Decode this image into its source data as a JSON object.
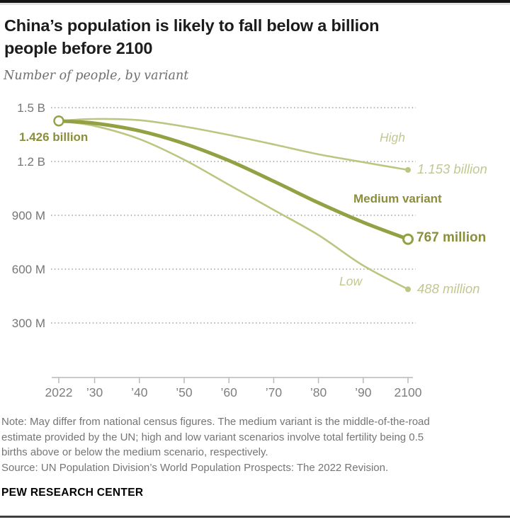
{
  "header": {
    "title_lines": [
      "China’s population is likely to fall below a billion",
      "people before 2100"
    ],
    "subtitle": "Number of people, by variant"
  },
  "chart_data": {
    "type": "line",
    "title": "China’s population is likely to fall below a billion people before 2100",
    "subtitle": "Number of people, by variant",
    "x": [
      2022,
      2030,
      2040,
      2050,
      2060,
      2070,
      2080,
      2090,
      2100
    ],
    "x_tick_labels": [
      "2022",
      "’30",
      "’40",
      "’50",
      "’60",
      "’70",
      "’80",
      "’90",
      "2100"
    ],
    "xlim": [
      2022,
      2100
    ],
    "y_unit": "millions of people",
    "y_ticks": [
      {
        "label": "1.5 B",
        "value": 1500
      },
      {
        "label": "1.2 B",
        "value": 1200
      },
      {
        "label": "900 M",
        "value": 900
      },
      {
        "label": "600 M",
        "value": 600
      },
      {
        "label": "300 M",
        "value": 300
      }
    ],
    "ylim_millions": [
      300,
      1500
    ],
    "grid": "dotted-horizontal",
    "start_point": {
      "year": 2022,
      "value_millions": 1426,
      "label": "1.426 billion"
    },
    "series": [
      {
        "name": "High",
        "role": "light",
        "end_marker": "dot",
        "values": [
          1426,
          1437,
          1430,
          1395,
          1348,
          1295,
          1240,
          1196,
          1153
        ],
        "end_value_millions": 1153,
        "end_label": "1.153 billion"
      },
      {
        "name": "Low",
        "role": "light",
        "end_marker": "dot",
        "values": [
          1426,
          1398,
          1325,
          1210,
          1070,
          930,
          790,
          620,
          488
        ],
        "end_value_millions": 488,
        "end_label": "488 million"
      },
      {
        "name": "Medium variant",
        "role": "emphasis",
        "end_marker": "open",
        "values": [
          1426,
          1413,
          1371,
          1300,
          1205,
          1090,
          970,
          861,
          767
        ],
        "end_value_millions": 767,
        "end_label": "767 million"
      }
    ],
    "legend_position": "inline-labels"
  },
  "annotations": {
    "start_value": "1.426 billion",
    "high_label": "High",
    "high_value": "1.153 billion",
    "medium_label": "Medium variant",
    "medium_value": "767 million",
    "low_label": "Low",
    "low_value": "488 million"
  },
  "footer": {
    "note_lines": [
      "Note: May differ from national census figures. The medium variant is the middle-of-the-road",
      "estimate provided by the UN; high and low variant scenarios involve total fertility being 0.5",
      "births above or below the medium scenario, respectively."
    ],
    "source": "Source: UN Population Division’s World Population Prospects: The 2022 Revision.",
    "brand": "PEW RESEARCH CENTER"
  },
  "colors": {
    "olive_dark": "#93a044",
    "olive_dark_text": "#8b8e3b",
    "olive_light": "#bdc580",
    "olive_light_text": "#c3c791",
    "grid_gray": "#9f9f9f",
    "axis_gray": "#b9b9b9",
    "tick_text_gray": "#7f7f7f",
    "note_gray": "#757575",
    "title_black": "#1c1c1c"
  }
}
